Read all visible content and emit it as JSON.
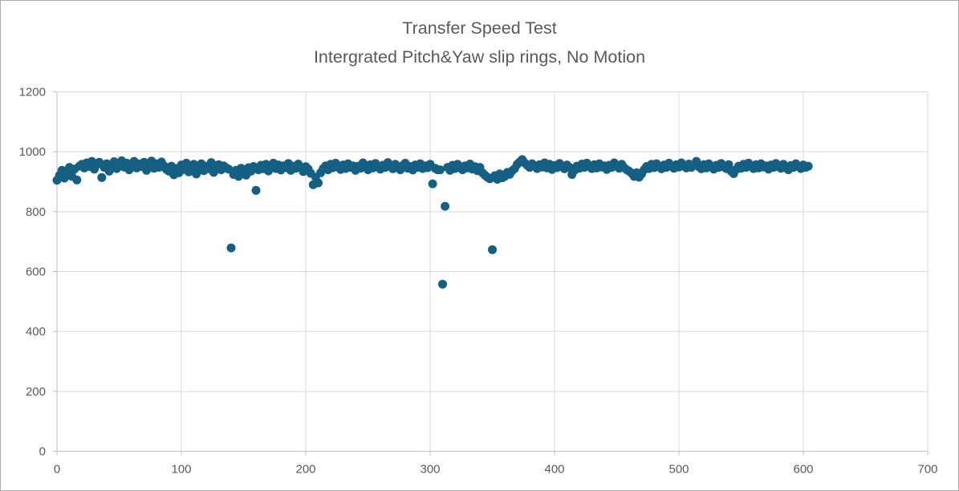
{
  "chart_data": {
    "type": "scatter",
    "title": "Transfer Speed Test",
    "subtitle": "Intergrated Pitch&Yaw slip rings, No Motion",
    "xlabel": "",
    "ylabel": "",
    "xlim": [
      0,
      700
    ],
    "ylim": [
      0,
      1200
    ],
    "x_ticks": [
      0,
      100,
      200,
      300,
      400,
      500,
      600,
      700
    ],
    "y_ticks": [
      0,
      200,
      400,
      600,
      800,
      1000,
      1200
    ],
    "grid": true,
    "legend": "none",
    "marker_color": "#156082",
    "marker_radius": 5.5,
    "style": {
      "background": "#FFFFFF",
      "page_border": "#ABABAB",
      "grid_color": "#D9D9D9",
      "axis_color": "#BFBFBF",
      "tick_label_color": "#595959",
      "title_color": "#595959"
    },
    "points": [
      [
        0,
        905
      ],
      [
        2,
        921
      ],
      [
        4,
        938
      ],
      [
        6,
        912
      ],
      [
        8,
        930
      ],
      [
        10,
        948
      ],
      [
        12,
        918
      ],
      [
        14,
        942
      ],
      [
        16,
        906
      ],
      [
        18,
        952
      ],
      [
        20,
        958
      ],
      [
        22,
        946
      ],
      [
        24,
        963
      ],
      [
        26,
        951
      ],
      [
        28,
        968
      ],
      [
        30,
        942
      ],
      [
        32,
        957
      ],
      [
        34,
        965
      ],
      [
        36,
        914
      ],
      [
        38,
        948
      ],
      [
        40,
        960
      ],
      [
        42,
        935
      ],
      [
        44,
        955
      ],
      [
        46,
        967
      ],
      [
        48,
        944
      ],
      [
        50,
        958
      ],
      [
        52,
        970
      ],
      [
        54,
        949
      ],
      [
        56,
        962
      ],
      [
        58,
        940
      ],
      [
        60,
        955
      ],
      [
        62,
        968
      ],
      [
        64,
        946
      ],
      [
        66,
        959
      ],
      [
        68,
        951
      ],
      [
        70,
        965
      ],
      [
        72,
        938
      ],
      [
        74,
        957
      ],
      [
        76,
        969
      ],
      [
        78,
        945
      ],
      [
        80,
        960
      ],
      [
        82,
        948
      ],
      [
        84,
        966
      ],
      [
        86,
        953
      ],
      [
        88,
        941
      ],
      [
        90,
        935
      ],
      [
        92,
        952
      ],
      [
        94,
        923
      ],
      [
        96,
        944
      ],
      [
        98,
        930
      ],
      [
        100,
        956
      ],
      [
        102,
        941
      ],
      [
        104,
        962
      ],
      [
        106,
        933
      ],
      [
        108,
        948
      ],
      [
        110,
        958
      ],
      [
        112,
        926
      ],
      [
        114,
        945
      ],
      [
        116,
        960
      ],
      [
        118,
        937
      ],
      [
        120,
        952
      ],
      [
        122,
        943
      ],
      [
        124,
        964
      ],
      [
        126,
        931
      ],
      [
        128,
        949
      ],
      [
        130,
        957
      ],
      [
        132,
        940
      ],
      [
        134,
        953
      ],
      [
        136,
        946
      ],
      [
        138,
        942
      ],
      [
        140,
        679
      ],
      [
        142,
        924
      ],
      [
        144,
        938
      ],
      [
        146,
        918
      ],
      [
        148,
        945
      ],
      [
        150,
        930
      ],
      [
        152,
        922
      ],
      [
        154,
        947
      ],
      [
        156,
        935
      ],
      [
        158,
        951
      ],
      [
        160,
        871
      ],
      [
        162,
        940
      ],
      [
        164,
        955
      ],
      [
        166,
        943
      ],
      [
        168,
        958
      ],
      [
        170,
        936
      ],
      [
        172,
        950
      ],
      [
        174,
        962
      ],
      [
        176,
        944
      ],
      [
        178,
        956
      ],
      [
        180,
        939
      ],
      [
        182,
        953
      ],
      [
        184,
        947
      ],
      [
        186,
        961
      ],
      [
        188,
        938
      ],
      [
        190,
        952
      ],
      [
        192,
        945
      ],
      [
        194,
        959
      ],
      [
        196,
        948
      ],
      [
        198,
        934
      ],
      [
        200,
        950
      ],
      [
        202,
        942
      ],
      [
        204,
        928
      ],
      [
        206,
        890
      ],
      [
        208,
        915
      ],
      [
        210,
        896
      ],
      [
        212,
        930
      ],
      [
        214,
        944
      ],
      [
        216,
        953
      ],
      [
        218,
        940
      ],
      [
        220,
        958
      ],
      [
        222,
        947
      ],
      [
        224,
        962
      ],
      [
        226,
        950
      ],
      [
        228,
        941
      ],
      [
        230,
        956
      ],
      [
        232,
        944
      ],
      [
        234,
        960
      ],
      [
        236,
        948
      ],
      [
        238,
        953
      ],
      [
        240,
        938
      ],
      [
        242,
        952
      ],
      [
        244,
        945
      ],
      [
        246,
        963
      ],
      [
        248,
        951
      ],
      [
        250,
        940
      ],
      [
        252,
        957
      ],
      [
        254,
        946
      ],
      [
        256,
        961
      ],
      [
        258,
        949
      ],
      [
        260,
        942
      ],
      [
        262,
        955
      ],
      [
        264,
        948
      ],
      [
        266,
        964
      ],
      [
        268,
        952
      ],
      [
        270,
        943
      ],
      [
        272,
        958
      ],
      [
        274,
        947
      ],
      [
        276,
        940
      ],
      [
        278,
        954
      ],
      [
        280,
        962
      ],
      [
        282,
        945
      ],
      [
        284,
        951
      ],
      [
        286,
        939
      ],
      [
        288,
        956
      ],
      [
        290,
        948
      ],
      [
        292,
        960
      ],
      [
        294,
        944
      ],
      [
        296,
        953
      ],
      [
        298,
        947
      ],
      [
        300,
        958
      ],
      [
        302,
        893
      ],
      [
        304,
        945
      ],
      [
        306,
        940
      ],
      [
        308,
        940
      ],
      [
        310,
        558
      ],
      [
        312,
        818
      ],
      [
        314,
        948
      ],
      [
        316,
        938
      ],
      [
        318,
        955
      ],
      [
        320,
        944
      ],
      [
        322,
        958
      ],
      [
        324,
        947
      ],
      [
        326,
        940
      ],
      [
        328,
        953
      ],
      [
        330,
        946
      ],
      [
        332,
        959
      ],
      [
        334,
        942
      ],
      [
        336,
        950
      ],
      [
        338,
        937
      ],
      [
        340,
        948
      ],
      [
        342,
        930
      ],
      [
        344,
        922
      ],
      [
        346,
        915
      ],
      [
        348,
        910
      ],
      [
        350,
        673
      ],
      [
        352,
        920
      ],
      [
        354,
        908
      ],
      [
        356,
        926
      ],
      [
        358,
        913
      ],
      [
        360,
        918
      ],
      [
        362,
        931
      ],
      [
        364,
        925
      ],
      [
        366,
        937
      ],
      [
        368,
        944
      ],
      [
        370,
        958
      ],
      [
        372,
        966
      ],
      [
        374,
        974
      ],
      [
        376,
        963
      ],
      [
        378,
        955
      ],
      [
        380,
        948
      ],
      [
        382,
        960
      ],
      [
        384,
        952
      ],
      [
        386,
        944
      ],
      [
        388,
        957
      ],
      [
        390,
        949
      ],
      [
        392,
        963
      ],
      [
        394,
        946
      ],
      [
        396,
        958
      ],
      [
        398,
        941
      ],
      [
        400,
        954
      ],
      [
        402,
        947
      ],
      [
        404,
        961
      ],
      [
        406,
        950
      ],
      [
        408,
        943
      ],
      [
        410,
        956
      ],
      [
        412,
        948
      ],
      [
        414,
        924
      ],
      [
        416,
        938
      ],
      [
        418,
        952
      ],
      [
        420,
        945
      ],
      [
        422,
        959
      ],
      [
        424,
        948
      ],
      [
        426,
        962
      ],
      [
        428,
        951
      ],
      [
        430,
        944
      ],
      [
        432,
        957
      ],
      [
        434,
        946
      ],
      [
        436,
        960
      ],
      [
        438,
        949
      ],
      [
        440,
        953
      ],
      [
        442,
        941
      ],
      [
        444,
        955
      ],
      [
        446,
        948
      ],
      [
        448,
        963
      ],
      [
        450,
        952
      ],
      [
        452,
        945
      ],
      [
        454,
        958
      ],
      [
        456,
        947
      ],
      [
        458,
        940
      ],
      [
        460,
        935
      ],
      [
        462,
        928
      ],
      [
        464,
        918
      ],
      [
        466,
        930
      ],
      [
        468,
        915
      ],
      [
        470,
        926
      ],
      [
        472,
        940
      ],
      [
        474,
        951
      ],
      [
        476,
        944
      ],
      [
        478,
        958
      ],
      [
        480,
        947
      ],
      [
        482,
        960
      ],
      [
        484,
        950
      ],
      [
        486,
        943
      ],
      [
        488,
        956
      ],
      [
        490,
        948
      ],
      [
        492,
        962
      ],
      [
        494,
        951
      ],
      [
        496,
        945
      ],
      [
        498,
        957
      ],
      [
        500,
        949
      ],
      [
        502,
        963
      ],
      [
        504,
        952
      ],
      [
        506,
        946
      ],
      [
        508,
        959
      ],
      [
        510,
        948
      ],
      [
        512,
        955
      ],
      [
        514,
        968
      ],
      [
        516,
        950
      ],
      [
        518,
        943
      ],
      [
        520,
        957
      ],
      [
        522,
        946
      ],
      [
        524,
        960
      ],
      [
        526,
        949
      ],
      [
        528,
        942
      ],
      [
        530,
        955
      ],
      [
        532,
        948
      ],
      [
        534,
        961
      ],
      [
        536,
        950
      ],
      [
        538,
        944
      ],
      [
        540,
        957
      ],
      [
        542,
        935
      ],
      [
        544,
        927
      ],
      [
        546,
        941
      ],
      [
        548,
        952
      ],
      [
        550,
        945
      ],
      [
        552,
        958
      ],
      [
        554,
        948
      ],
      [
        556,
        962
      ],
      [
        558,
        951
      ],
      [
        560,
        944
      ],
      [
        562,
        957
      ],
      [
        564,
        946
      ],
      [
        566,
        960
      ],
      [
        568,
        949
      ],
      [
        570,
        953
      ],
      [
        572,
        942
      ],
      [
        574,
        956
      ],
      [
        576,
        948
      ],
      [
        578,
        961
      ],
      [
        580,
        950
      ],
      [
        582,
        945
      ],
      [
        584,
        958
      ],
      [
        586,
        947
      ],
      [
        588,
        940
      ],
      [
        590,
        954
      ],
      [
        592,
        948
      ],
      [
        594,
        960
      ],
      [
        596,
        951
      ],
      [
        598,
        944
      ],
      [
        600,
        956
      ],
      [
        602,
        948
      ],
      [
        604,
        952
      ]
    ]
  }
}
